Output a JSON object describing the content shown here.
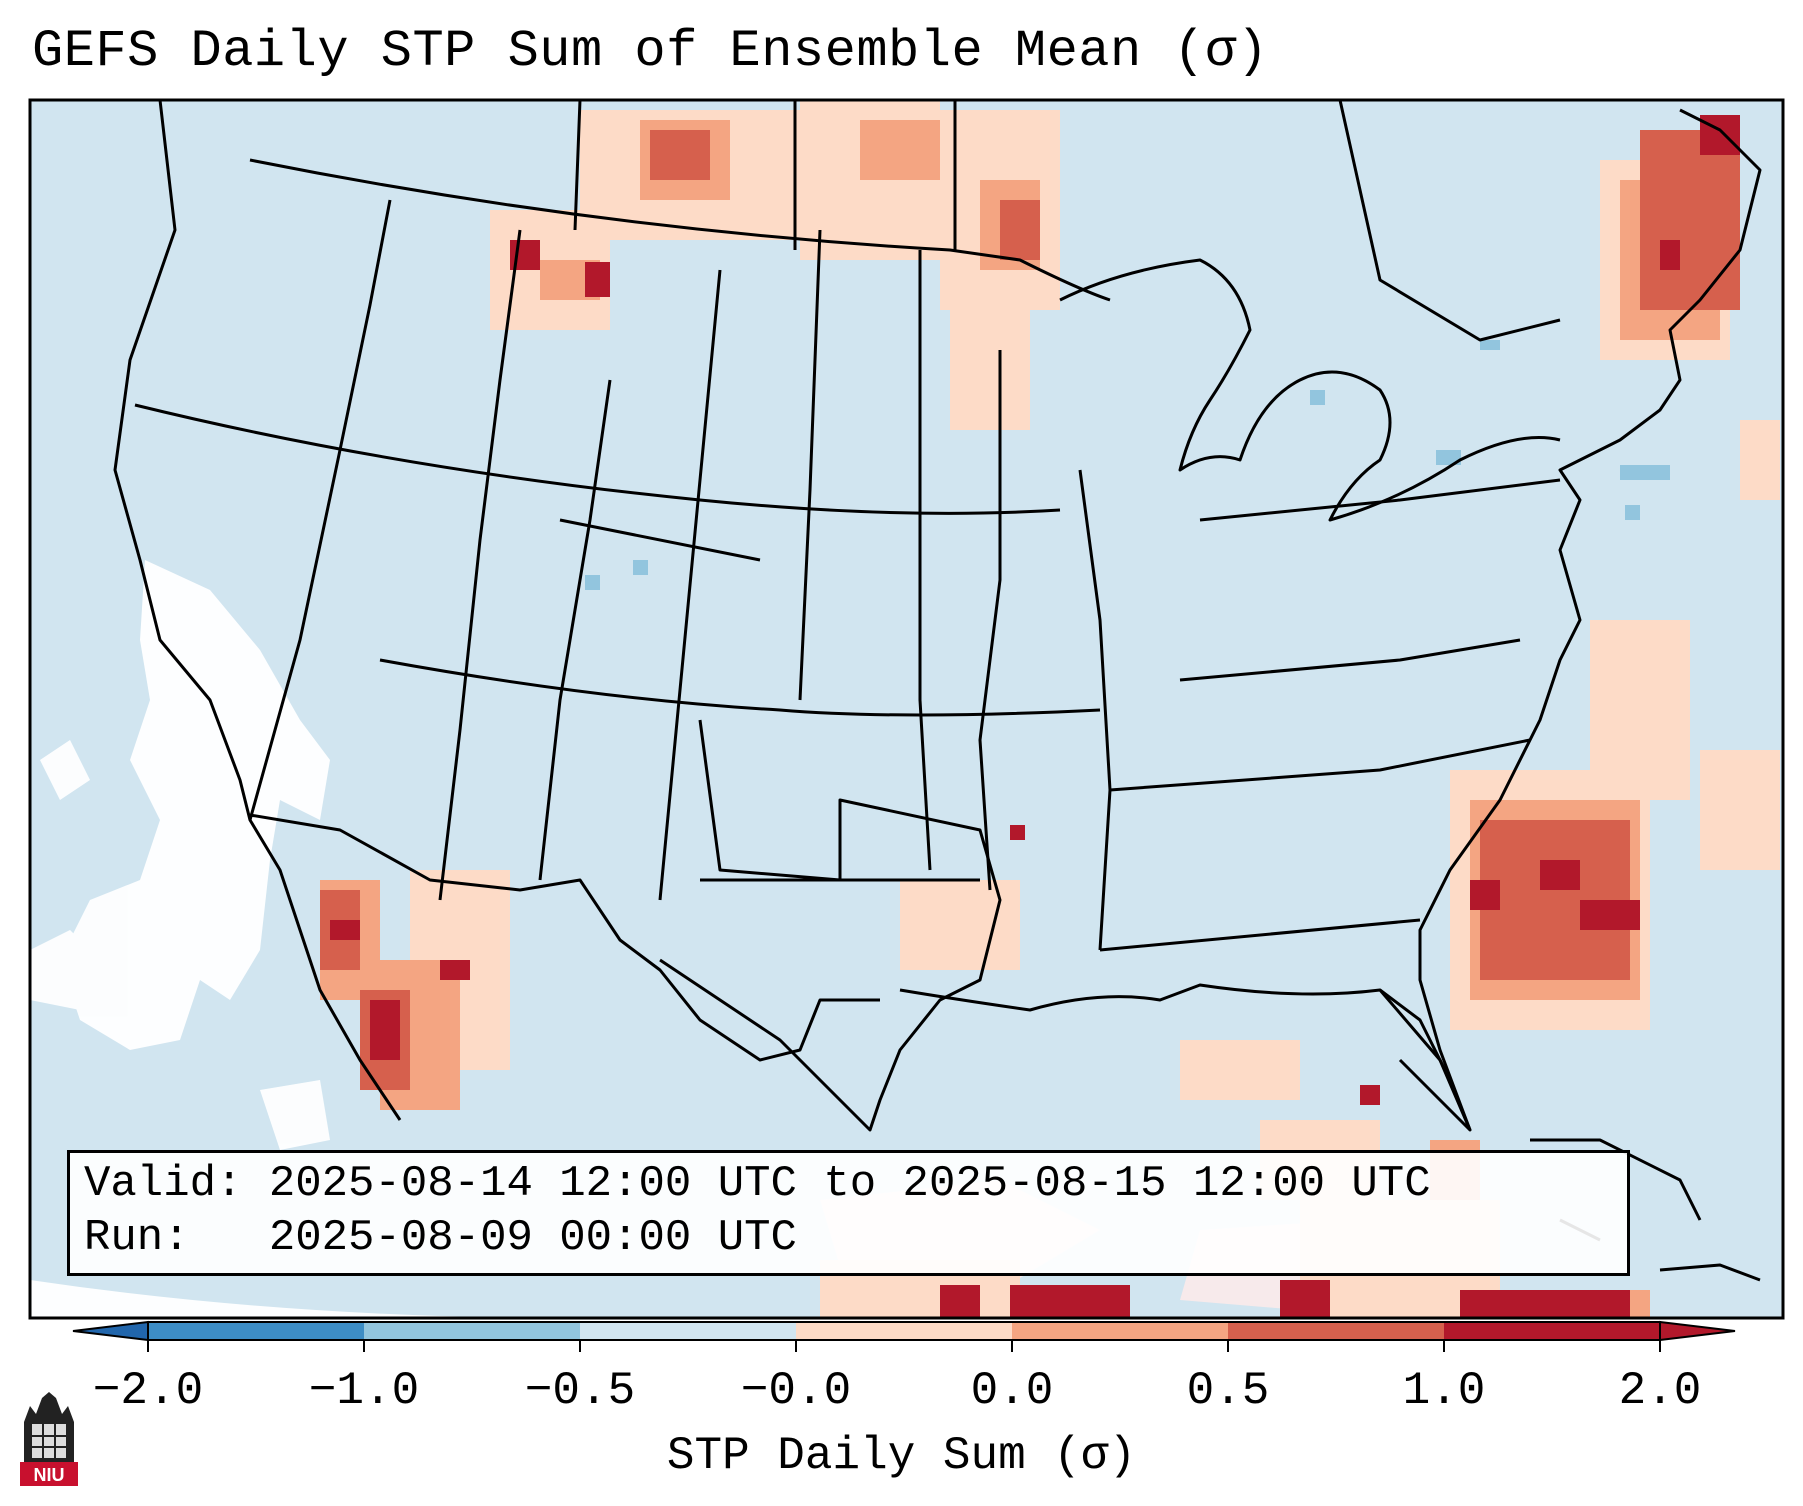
{
  "title": "GEFS Daily STP Sum of Ensemble Mean (σ)",
  "valid_line": "Valid: 2025-08-14 12:00 UTC to 2025-08-15 12:00 UTC",
  "run_line": "Run:   2025-08-09 00:00 UTC",
  "colorbar": {
    "label": "STP Daily Sum (σ)",
    "ticks": [
      "−2.0",
      "−1.0",
      "−0.5",
      "−0.0",
      "0.0",
      "0.5",
      "1.0",
      "2.0"
    ],
    "colors": [
      "#3d8dc5",
      "#92c5de",
      "#d1e5f0",
      "#f7f7f7",
      "#fddbc7",
      "#f4a582",
      "#d6604d",
      "#b2182b"
    ],
    "extend_low": "#2166ac",
    "extend_high": "#b2182b"
  },
  "map": {
    "background_color": "#d1e5f0",
    "line_color": "#000000"
  },
  "logo": {
    "text": "NIU",
    "color": "#c8102e"
  }
}
